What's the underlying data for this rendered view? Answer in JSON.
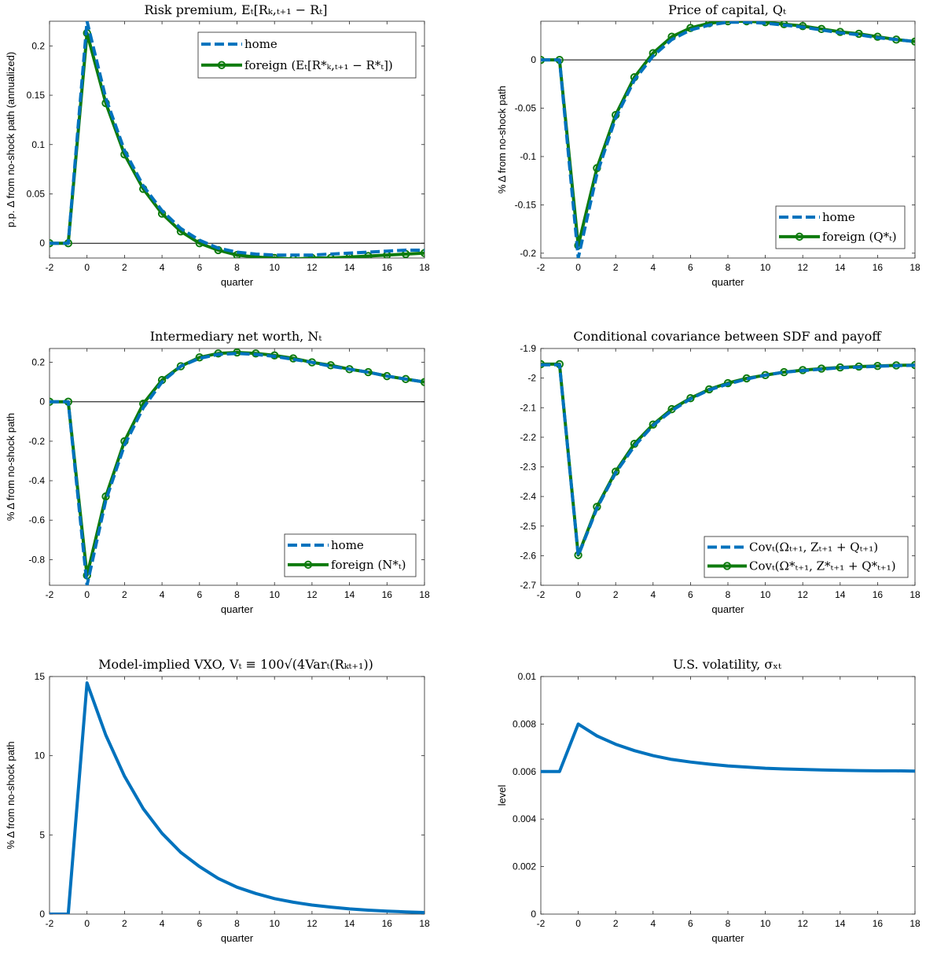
{
  "chart_data": [
    {
      "type": "line",
      "title": "Risk premium, Eₜ[Rₖ,ₜ₊₁ − Rₜ]",
      "xlabel": "quarter",
      "ylabel": "p.p. Δ from no-shock path (annualized)",
      "xlim": [
        -2,
        18
      ],
      "ylim": [
        -0.015,
        0.225
      ],
      "xticks": [
        "-2",
        "0",
        "2",
        "4",
        "6",
        "8",
        "10",
        "12",
        "14",
        "16",
        "18"
      ],
      "yticks": [
        "0",
        "0.05",
        "0.1",
        "0.15",
        "0.2"
      ],
      "ytick_values": [
        0,
        0.05,
        0.1,
        0.15,
        0.2
      ],
      "zero_line": true,
      "legend_position": "top-right",
      "x": [
        -2,
        -1,
        0,
        1,
        2,
        3,
        4,
        5,
        6,
        7,
        8,
        9,
        10,
        11,
        12,
        13,
        14,
        15,
        16,
        17,
        18
      ],
      "series": [
        {
          "name": "home",
          "style": "dashed",
          "color": "#0072BD",
          "values": [
            0,
            0,
            0.225,
            0.147,
            0.094,
            0.058,
            0.033,
            0.015,
            0.003,
            -0.005,
            -0.009,
            -0.011,
            -0.012,
            -0.012,
            -0.012,
            -0.011,
            -0.01,
            -0.009,
            -0.008,
            -0.007,
            -0.007
          ]
        },
        {
          "name": "foreign (Eₜ[R*ₖ,ₜ₊₁ − R*ₜ])",
          "style": "solid-marker",
          "color": "#0E7B0E",
          "values": [
            0,
            0,
            0.213,
            0.142,
            0.09,
            0.055,
            0.03,
            0.012,
            0.0,
            -0.007,
            -0.012,
            -0.014,
            -0.015,
            -0.016,
            -0.015,
            -0.015,
            -0.014,
            -0.013,
            -0.012,
            -0.011,
            -0.01
          ]
        }
      ]
    },
    {
      "type": "line",
      "title": "Price of capital, Qₜ",
      "xlabel": "quarter",
      "ylabel": "% Δ from no-shock path",
      "xlim": [
        -2,
        18
      ],
      "ylim": [
        -0.205,
        0.04
      ],
      "xticks": [
        "-2",
        "0",
        "2",
        "4",
        "6",
        "8",
        "10",
        "12",
        "14",
        "16",
        "18"
      ],
      "yticks": [
        "0",
        "-0.05",
        "-0.1",
        "-0.15",
        "-0.2"
      ],
      "ytick_values": [
        0,
        -0.05,
        -0.1,
        -0.15,
        -0.2
      ],
      "zero_line": true,
      "legend_position": "bottom-right",
      "x": [
        -2,
        -1,
        0,
        1,
        2,
        3,
        4,
        5,
        6,
        7,
        8,
        9,
        10,
        11,
        12,
        13,
        14,
        15,
        16,
        17,
        18
      ],
      "series": [
        {
          "name": "home",
          "style": "dashed",
          "color": "#0072BD",
          "values": [
            0,
            0,
            -0.205,
            -0.118,
            -0.06,
            -0.021,
            0.004,
            0.021,
            0.031,
            0.036,
            0.039,
            0.039,
            0.038,
            0.036,
            0.034,
            0.031,
            0.028,
            0.026,
            0.023,
            0.021,
            0.019
          ]
        },
        {
          "name": "foreign (Q*ₜ)",
          "style": "solid-marker",
          "color": "#0E7B0E",
          "values": [
            0,
            0,
            -0.192,
            -0.112,
            -0.057,
            -0.018,
            0.007,
            0.024,
            0.033,
            0.038,
            0.04,
            0.04,
            0.039,
            0.037,
            0.035,
            0.032,
            0.029,
            0.027,
            0.024,
            0.021,
            0.019
          ]
        }
      ]
    },
    {
      "type": "line",
      "title": "Intermediary net worth, Nₜ",
      "xlabel": "quarter",
      "ylabel": "% Δ from no-shock path",
      "xlim": [
        -2,
        18
      ],
      "ylim": [
        -0.93,
        0.27
      ],
      "xticks": [
        "-2",
        "0",
        "2",
        "4",
        "6",
        "8",
        "10",
        "12",
        "14",
        "16",
        "18"
      ],
      "yticks": [
        "0.2",
        "0",
        "-0.2",
        "-0.4",
        "-0.6",
        "-0.8"
      ],
      "ytick_values": [
        0.2,
        0,
        -0.2,
        -0.4,
        -0.6,
        -0.8
      ],
      "zero_line": true,
      "legend_position": "bottom-right",
      "x": [
        -2,
        -1,
        0,
        1,
        2,
        3,
        4,
        5,
        6,
        7,
        8,
        9,
        10,
        11,
        12,
        13,
        14,
        15,
        16,
        17,
        18
      ],
      "series": [
        {
          "name": "home",
          "style": "dashed",
          "color": "#0072BD",
          "values": [
            0,
            0,
            -0.93,
            -0.5,
            -0.22,
            -0.03,
            0.1,
            0.18,
            0.22,
            0.24,
            0.245,
            0.24,
            0.23,
            0.215,
            0.2,
            0.18,
            0.165,
            0.15,
            0.13,
            0.115,
            0.1
          ]
        },
        {
          "name": "foreign (N*ₜ)",
          "style": "solid-marker",
          "color": "#0E7B0E",
          "values": [
            0,
            0,
            -0.88,
            -0.48,
            -0.2,
            -0.01,
            0.11,
            0.18,
            0.225,
            0.245,
            0.25,
            0.245,
            0.235,
            0.22,
            0.2,
            0.185,
            0.165,
            0.15,
            0.13,
            0.115,
            0.1
          ]
        }
      ]
    },
    {
      "type": "line",
      "title": "Conditional covariance between SDF and payoff",
      "xlabel": "quarter",
      "ylabel": "",
      "xlim": [
        -2,
        18
      ],
      "ylim": [
        -2.7,
        -1.9
      ],
      "xticks": [
        "-2",
        "0",
        "2",
        "4",
        "6",
        "8",
        "10",
        "12",
        "14",
        "16",
        "18"
      ],
      "yticks": [
        "-1.9",
        "-2",
        "-2.1",
        "-2.2",
        "-2.3",
        "-2.4",
        "-2.5",
        "-2.6",
        "-2.7"
      ],
      "ytick_values": [
        -1.9,
        -2,
        -2.1,
        -2.2,
        -2.3,
        -2.4,
        -2.5,
        -2.6,
        -2.7
      ],
      "zero_line": false,
      "legend_position": "bottom-right",
      "x": [
        -2,
        -1,
        0,
        1,
        2,
        3,
        4,
        5,
        6,
        7,
        8,
        9,
        10,
        11,
        12,
        13,
        14,
        15,
        16,
        17,
        18
      ],
      "series": [
        {
          "name": "Covₜ(Ωₜ₊₁, Zₜ₊₁ + Qₜ₊₁)",
          "style": "dashed",
          "color": "#0072BD",
          "values": [
            -1.955,
            -1.955,
            -2.6,
            -2.44,
            -2.32,
            -2.23,
            -2.16,
            -2.11,
            -2.07,
            -2.04,
            -2.02,
            -2.003,
            -1.99,
            -1.98,
            -1.975,
            -1.97,
            -1.965,
            -1.963,
            -1.96,
            -1.958,
            -1.957
          ]
        },
        {
          "name": "Covₜ(Ω*ₜ₊₁, Z*ₜ₊₁ + Q*ₜ₊₁)",
          "style": "solid-marker",
          "color": "#0E7B0E",
          "values": [
            -1.953,
            -1.953,
            -2.598,
            -2.435,
            -2.316,
            -2.222,
            -2.157,
            -2.105,
            -2.068,
            -2.038,
            -2.017,
            -2.001,
            -1.99,
            -1.98,
            -1.973,
            -1.968,
            -1.964,
            -1.961,
            -1.959,
            -1.957,
            -1.956
          ]
        }
      ]
    },
    {
      "type": "line",
      "title": "Model-implied VXO, Vₜ ≡ 100√(4Varₜ(Rₖₜ₊₁))",
      "xlabel": "quarter",
      "ylabel": "% Δ from no-shock path",
      "xlim": [
        -2,
        18
      ],
      "ylim": [
        0,
        15
      ],
      "xticks": [
        "-2",
        "0",
        "2",
        "4",
        "6",
        "8",
        "10",
        "12",
        "14",
        "16",
        "18"
      ],
      "yticks": [
        "0",
        "5",
        "10",
        "15"
      ],
      "ytick_values": [
        0,
        5,
        10,
        15
      ],
      "zero_line": false,
      "x": [
        -2,
        -1,
        0,
        1,
        2,
        3,
        4,
        5,
        6,
        7,
        8,
        9,
        10,
        11,
        12,
        13,
        14,
        15,
        16,
        17,
        18
      ],
      "series": [
        {
          "style": "solid",
          "color": "#0072BD",
          "values": [
            0,
            0,
            14.6,
            11.3,
            8.7,
            6.65,
            5.1,
            3.9,
            3.0,
            2.25,
            1.7,
            1.3,
            0.98,
            0.75,
            0.57,
            0.44,
            0.33,
            0.25,
            0.19,
            0.14,
            0.1
          ]
        }
      ]
    },
    {
      "type": "line",
      "title": "U.S. volatility, σₓₜ",
      "xlabel": "quarter",
      "ylabel": "level",
      "xlim": [
        -2,
        18
      ],
      "ylim": [
        0,
        0.01
      ],
      "xticks": [
        "-2",
        "0",
        "2",
        "4",
        "6",
        "8",
        "10",
        "12",
        "14",
        "16",
        "18"
      ],
      "yticks": [
        "0",
        "0.002",
        "0.004",
        "0.006",
        "0.008",
        "0.01"
      ],
      "ytick_values": [
        0,
        0.002,
        0.004,
        0.006,
        0.008,
        0.01
      ],
      "zero_line": false,
      "x": [
        -2,
        -1,
        0,
        1,
        2,
        3,
        4,
        5,
        6,
        7,
        8,
        9,
        10,
        11,
        12,
        13,
        14,
        15,
        16,
        17,
        18
      ],
      "series": [
        {
          "style": "solid",
          "color": "#0072BD",
          "values": [
            0.006,
            0.006,
            0.008,
            0.0075,
            0.00715,
            0.00688,
            0.00667,
            0.00651,
            0.0064,
            0.00631,
            0.00624,
            0.00619,
            0.00614,
            0.00611,
            0.00609,
            0.00607,
            0.00605,
            0.00604,
            0.00603,
            0.00603,
            0.00602
          ]
        }
      ]
    }
  ]
}
